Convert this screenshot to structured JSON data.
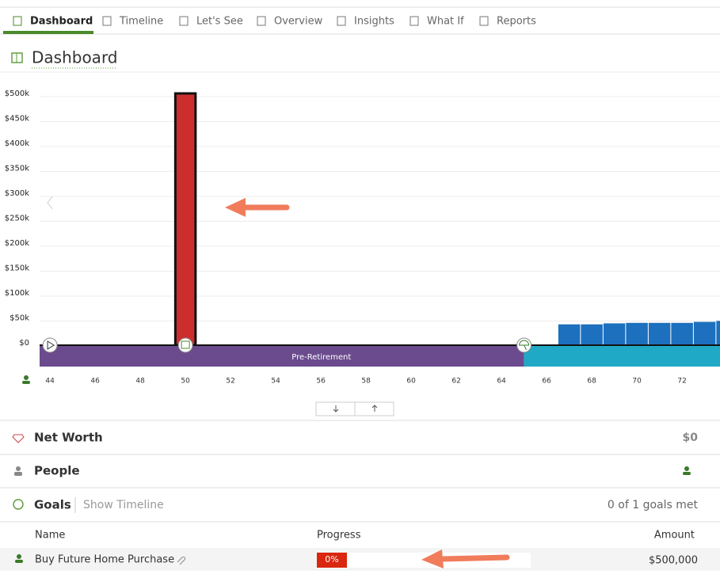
{
  "tabs": [
    "Dashboard",
    "Timeline",
    "Let's See",
    "Overview",
    "Insights",
    "What If",
    "Reports"
  ],
  "page_title": "Dashboard",
  "chart_data": {
    "type": "bar",
    "x": [
      50,
      67,
      68,
      69,
      70,
      71,
      72,
      73,
      74
    ],
    "series": [
      {
        "color": "#cc2e2e",
        "x": [
          50
        ],
        "values": [
          500000
        ]
      },
      {
        "color": "#1c70bd",
        "x": [
          67,
          68,
          69,
          70,
          71,
          72,
          73,
          74
        ],
        "values": [
          37000,
          37000,
          39000,
          40000,
          40000,
          40000,
          42000,
          44000
        ]
      }
    ],
    "xlim": [
      43.54,
      73.68
    ],
    "xticks": [
      44,
      46,
      48,
      50,
      52,
      54,
      56,
      58,
      60,
      62,
      64,
      66,
      68,
      70,
      72
    ],
    "ylim": [
      0,
      500000
    ],
    "yticks": [
      {
        "value": 0,
        "label": "$0"
      },
      {
        "value": 50000,
        "label": "$50k"
      },
      {
        "value": 100000,
        "label": "$100k"
      },
      {
        "value": 150000,
        "label": "$150k"
      },
      {
        "value": 200000,
        "label": "$200k"
      },
      {
        "value": 250000,
        "label": "$250k"
      },
      {
        "value": 300000,
        "label": "$300k"
      },
      {
        "value": 350000,
        "label": "$350k"
      },
      {
        "value": 400000,
        "label": "$400k"
      },
      {
        "value": 450000,
        "label": "$450k"
      },
      {
        "value": 500000,
        "label": "$500k"
      }
    ],
    "grid": true,
    "phase_label": "Pre-Retirement"
  },
  "sections": {
    "net_worth": {
      "title": "Net Worth",
      "value": "$0"
    },
    "people": {
      "title": "People"
    },
    "goals": {
      "title": "Goals",
      "link": "Show Timeline",
      "status": "0 of 1 goals met"
    }
  },
  "table": {
    "headers": [
      "Name",
      "Progress",
      "Amount"
    ],
    "rows": [
      [
        "Buy Future Home Purchase",
        "0%",
        "$500,000"
      ]
    ]
  }
}
